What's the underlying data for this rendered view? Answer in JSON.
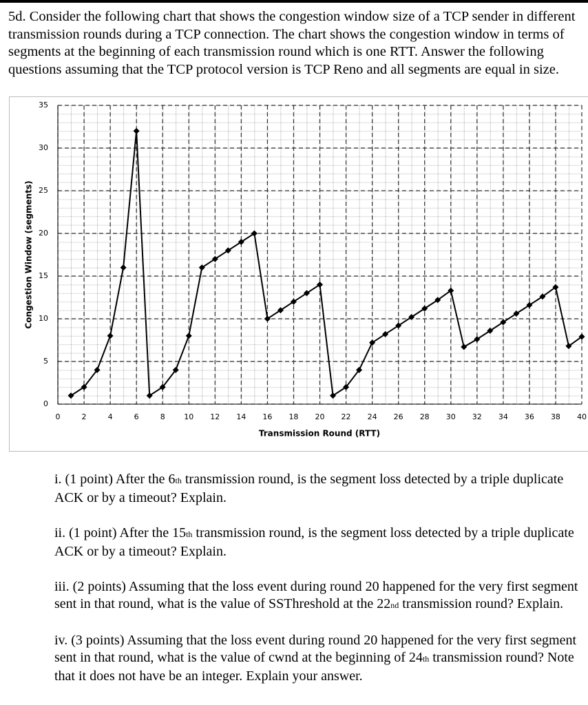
{
  "header": {
    "text": "5d. Consider the following chart that shows the congestion window size of a TCP sender in different transmission rounds during a TCP connection. The chart shows the congestion window in terms of segments at the beginning of each transmission round which is one RTT. Answer the following questions assuming that the TCP protocol version is TCP Reno and all segments are equal in size."
  },
  "chart_data": {
    "type": "line",
    "x_label": "Transmission Round (RTT)",
    "y_label": "Congestion Window (segments)",
    "x": [
      1,
      2,
      3,
      4,
      5,
      6,
      7,
      8,
      9,
      10,
      11,
      12,
      13,
      14,
      15,
      16,
      17,
      18,
      19,
      20,
      21,
      22,
      23,
      24,
      25,
      26,
      27,
      28,
      29,
      30,
      31,
      32,
      33,
      34,
      35,
      36,
      37,
      38,
      39,
      40
    ],
    "values": [
      1,
      2,
      4,
      8,
      16,
      32,
      1,
      2,
      4,
      8,
      16,
      17,
      18,
      19,
      20,
      10,
      11,
      12,
      13,
      14,
      1,
      2,
      4,
      7.2,
      8.2,
      9.2,
      10.2,
      11.2,
      12.2,
      13.3,
      6.7,
      7.6,
      8.6,
      9.6,
      10.6,
      11.6,
      12.6,
      13.7,
      6.8,
      7.9
    ],
    "color": "#000000",
    "xlim": [
      0,
      40
    ],
    "xticks": [
      0,
      2,
      4,
      6,
      8,
      10,
      12,
      14,
      16,
      18,
      20,
      22,
      24,
      26,
      28,
      30,
      32,
      34,
      36,
      38,
      40
    ],
    "ylim": [
      0,
      35
    ],
    "yticks": [
      0,
      5,
      10,
      15,
      20,
      25,
      30,
      35
    ],
    "grid": true
  },
  "questions": [
    [
      "i. (1 point) After the 6",
      "th",
      " transmission round, is the segment loss detected by a triple duplicate ACK or by a timeout? Explain."
    ],
    [
      "ii. (1 point) After the 15",
      "th",
      " transmission round, is the segment loss detected by a triple duplicate ACK or by a timeout? Explain."
    ],
    [
      "iii. (2 points) Assuming that the loss event during round 20 happened for the very first segment sent in that round, what is the value of SSThreshold at the 22",
      "nd",
      " transmission round? Explain."
    ],
    [
      "iv. (3 points) Assuming that the loss event during round 20 happened for the very first segment sent in that round, what is the value of cwnd at the beginning of 24",
      "th",
      " transmission round? Note that it does not have be an integer. Explain your answer."
    ]
  ]
}
